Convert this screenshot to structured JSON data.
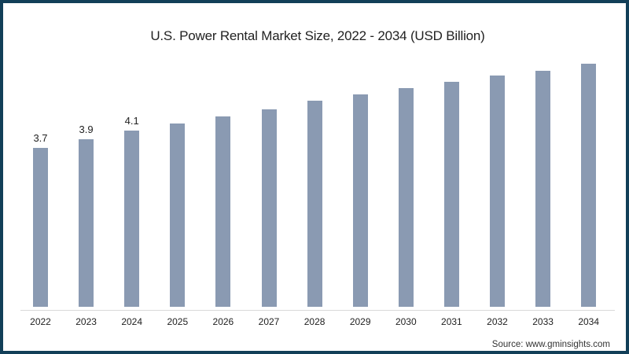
{
  "title": "U.S. Power Rental Market Size, 2022 - 2034 (USD Billion)",
  "source": "Source: www.gminsights.com",
  "colors": {
    "bar": "#8a9ab2",
    "border": "#123f58",
    "background": "#ffffff"
  },
  "chart_data": {
    "type": "bar",
    "title": "U.S. Power Rental Market Size, 2022 - 2034 (USD Billion)",
    "xlabel": "",
    "ylabel": "USD Billion",
    "categories": [
      "2022",
      "2023",
      "2024",
      "2025",
      "2026",
      "2027",
      "2028",
      "2029",
      "2030",
      "2031",
      "2032",
      "2033",
      "2034"
    ],
    "values": [
      3.7,
      3.9,
      4.1,
      4.27,
      4.43,
      4.6,
      4.8,
      4.95,
      5.1,
      5.24,
      5.38,
      5.5,
      5.66
    ],
    "data_labels": [
      "3.7",
      "3.9",
      "4.1",
      "",
      "",
      "",
      "",
      "",
      "",
      "",
      "",
      "",
      ""
    ],
    "ylim": [
      0,
      6
    ],
    "grid": false,
    "legend": null
  }
}
